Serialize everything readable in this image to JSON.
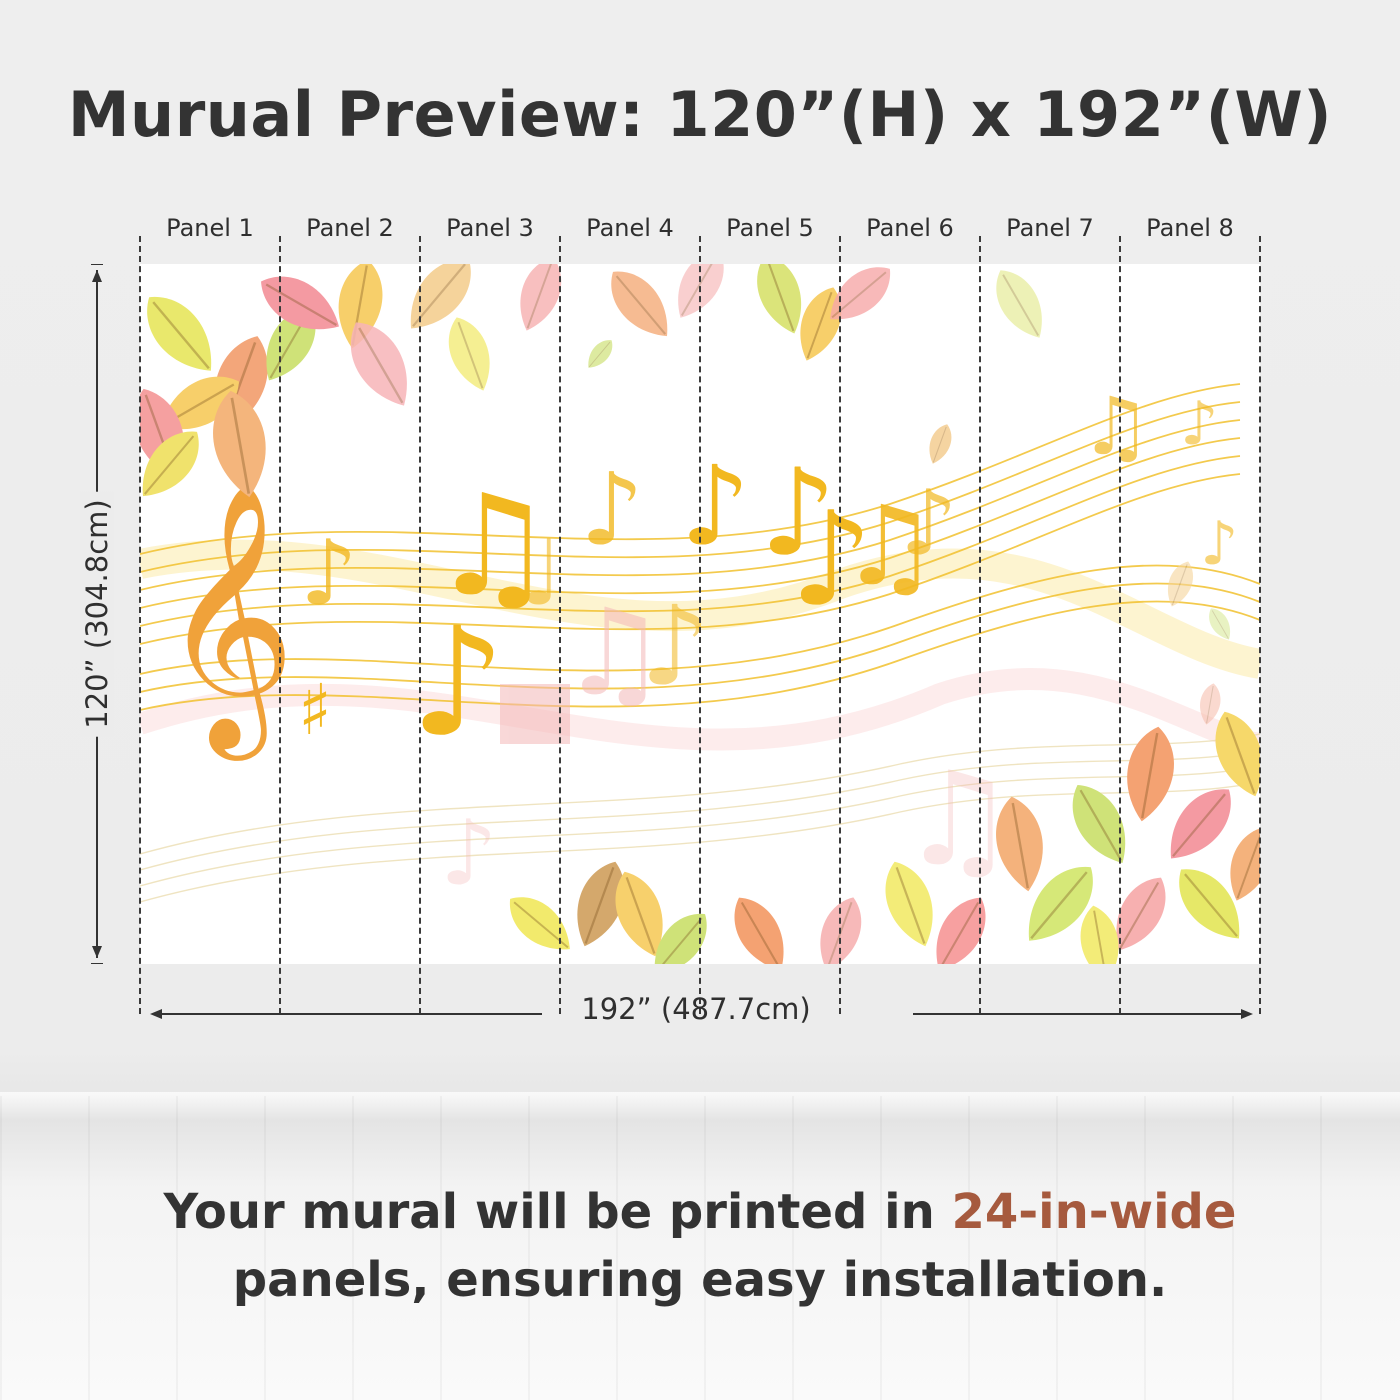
{
  "title": "Murual Preview: 120”(H) x 192”(W)",
  "panels": [
    "Panel 1",
    "Panel 2",
    "Panel 3",
    "Panel 4",
    "Panel 5",
    "Panel 6",
    "Panel 7",
    "Panel 8"
  ],
  "height_label": "120” (304.8cm)",
  "width_label": "192” (487.7cm)",
  "caption": {
    "part1": "Your mural will be printed in ",
    "highlight": "24-in-wide",
    "part2": "panels, ensuring easy installation."
  },
  "colors": {
    "title": "#333333",
    "accent": "#a65a3e",
    "staff": "#f2c12e",
    "clef": "#f0a23a"
  },
  "icons": [
    "treble-clef-icon",
    "music-note-icon",
    "leaf-icon",
    "arrow-icon"
  ]
}
